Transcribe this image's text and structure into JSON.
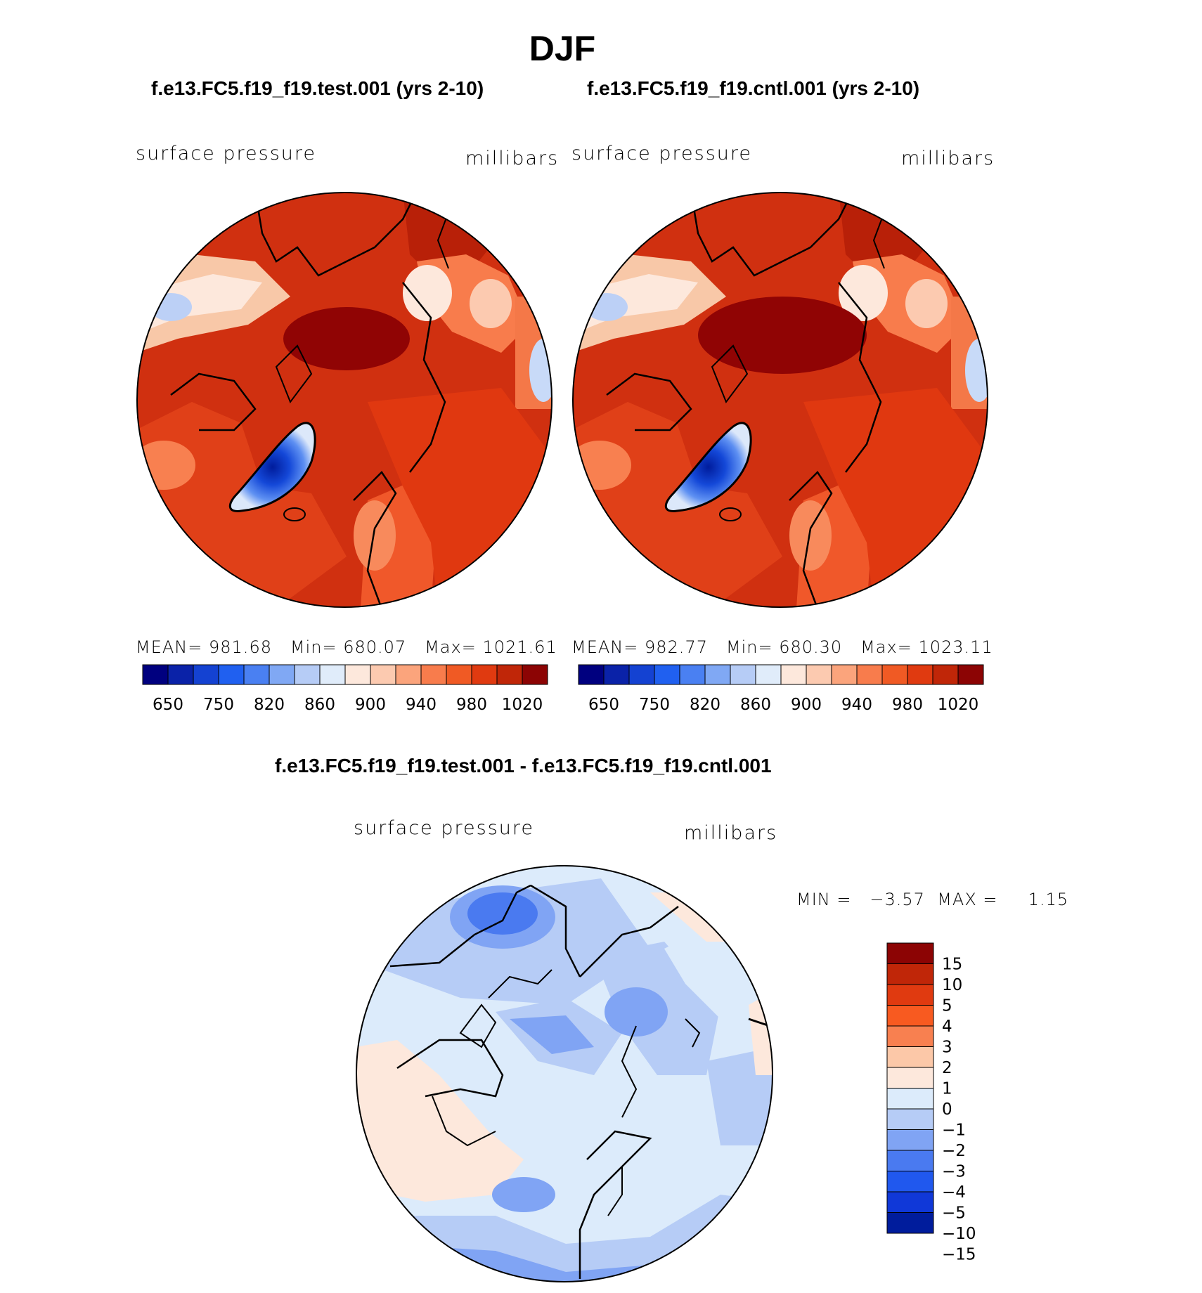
{
  "main_title": "DJF",
  "panels": [
    {
      "title": "f.e13.FC5.f19_f19.test.001 (yrs 2-10)",
      "variable": "surface pressure",
      "units": "millibars",
      "stats": {
        "mean_label": "MEAN=",
        "mean": "981.68",
        "min_label": "Min=",
        "min": "680.07",
        "max_label": "Max=",
        "max": "1021.61"
      }
    },
    {
      "title": "f.e13.FC5.f19_f19.cntl.001 (yrs 2-10)",
      "variable": "surface pressure",
      "units": "millibars",
      "stats": {
        "mean_label": "MEAN=",
        "mean": "982.77",
        "min_label": "Min=",
        "min": "680.30",
        "max_label": "Max=",
        "max": "1023.11"
      }
    }
  ],
  "abs_colorbar": {
    "colors": [
      "#00007f",
      "#0a22a8",
      "#1442d2",
      "#2060f0",
      "#4a80f2",
      "#80a8f4",
      "#b6ccf6",
      "#e0ecfa",
      "#fde8dc",
      "#fccab0",
      "#fba47c",
      "#f87c4c",
      "#f05a24",
      "#e03a10",
      "#c02608",
      "#8c0404"
    ],
    "labels": [
      "650",
      "750",
      "820",
      "860",
      "900",
      "940",
      "980",
      "1020"
    ]
  },
  "diff_panel": {
    "title": "f.e13.FC5.f19_f19.test.001 - f.e13.FC5.f19_f19.cntl.001",
    "variable": "surface pressure",
    "units": "millibars",
    "min_label": "MIN =",
    "min": "−3.57",
    "max_label": "MAX =",
    "max": "1.15"
  },
  "diff_colorbar": {
    "colors": [
      "#8c0404",
      "#c02608",
      "#e03a10",
      "#f85a20",
      "#f88050",
      "#fcc8a8",
      "#fde8dc",
      "#dcebfb",
      "#b6ccf6",
      "#80a4f4",
      "#4a7af0",
      "#2058ee",
      "#1038d8",
      "#001c9c"
    ],
    "labels": [
      "15",
      "10",
      "5",
      "4",
      "3",
      "2",
      "1",
      "0",
      "−1",
      "−2",
      "−3",
      "−4",
      "−5",
      "−10",
      "−15"
    ]
  }
}
